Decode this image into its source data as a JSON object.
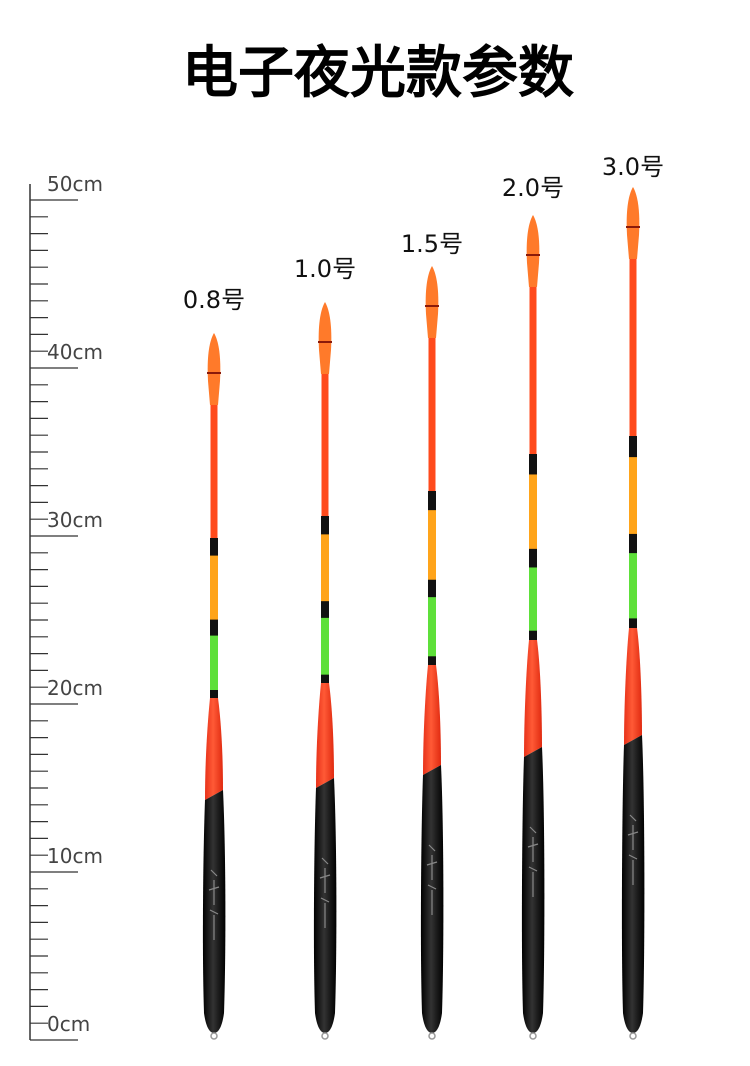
{
  "header": {
    "title": "电子夜光款参数"
  },
  "ruler": {
    "labels": [
      "50cm",
      "40cm",
      "30cm",
      "20cm",
      "10cm",
      "0cm"
    ]
  },
  "floats": [
    {
      "label": "0.8号"
    },
    {
      "label": "1.0号"
    },
    {
      "label": "1.5号"
    },
    {
      "label": "2.0号"
    },
    {
      "label": "3.0号"
    }
  ]
}
